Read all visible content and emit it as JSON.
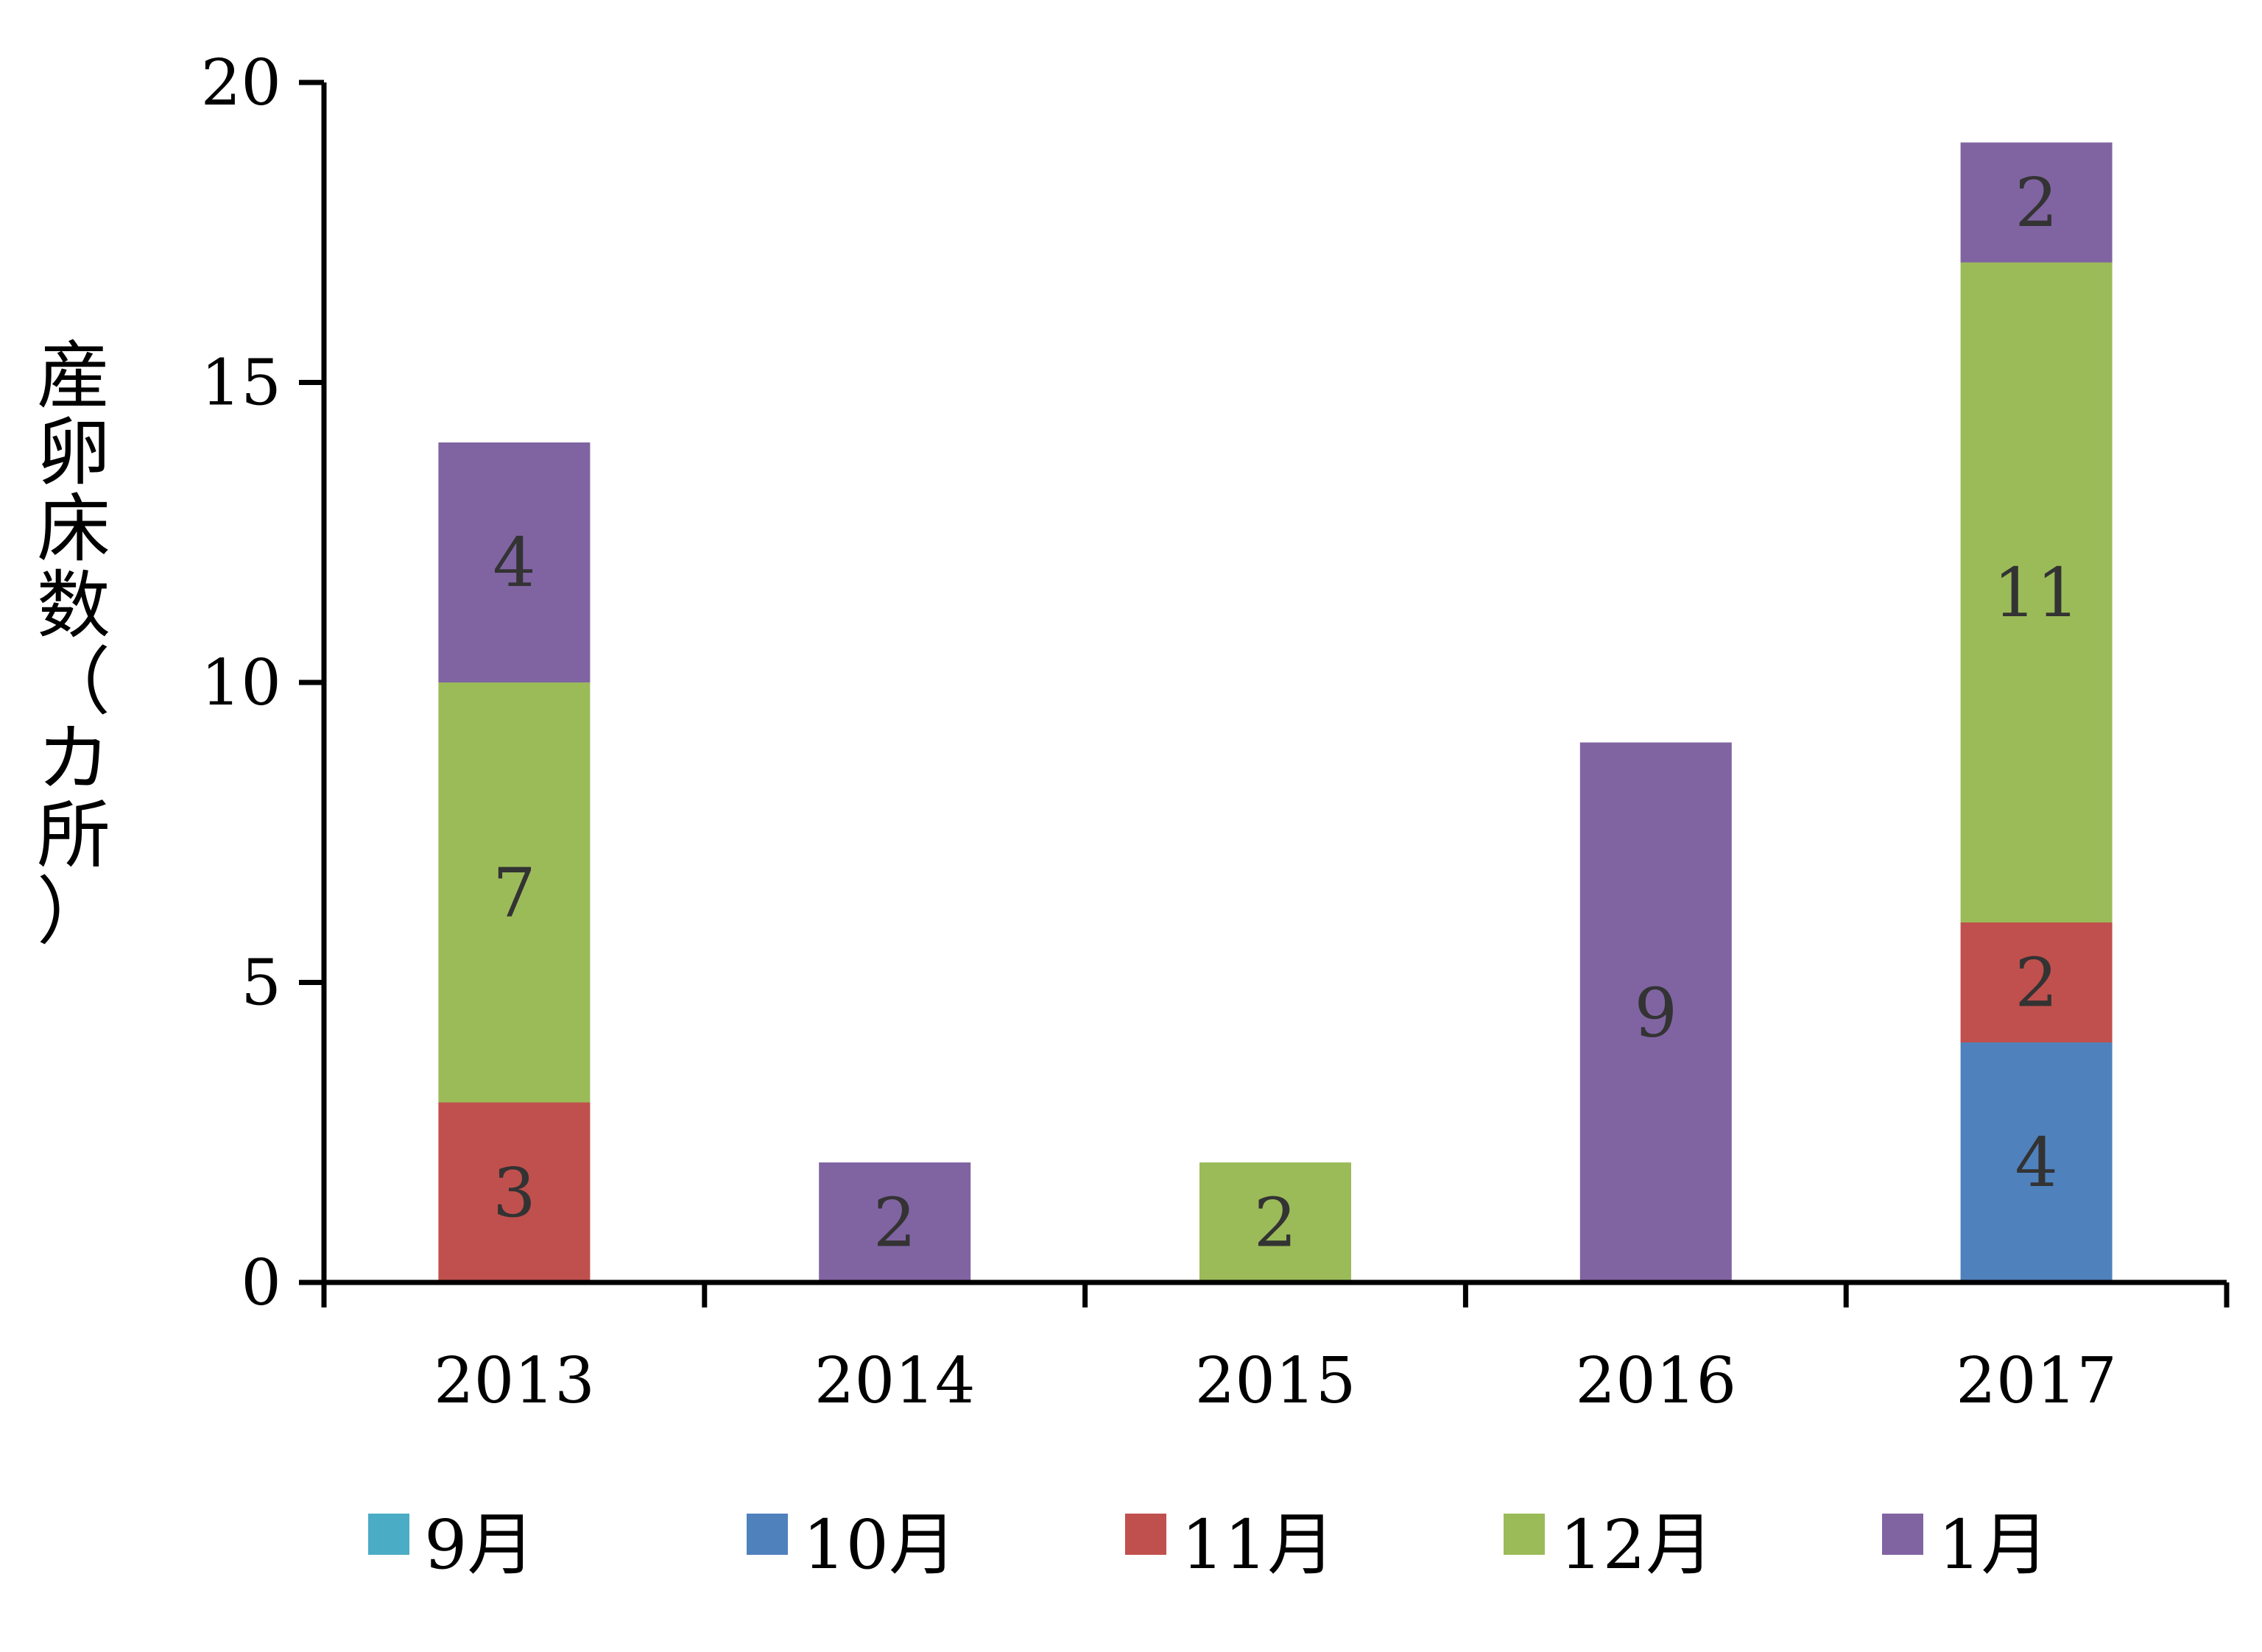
{
  "chart_data": {
    "type": "bar",
    "stacked": true,
    "title": "",
    "xlabel": "",
    "ylabel": "産卵床数（カ所）",
    "ylim": [
      0,
      20
    ],
    "yticks": [
      0,
      5,
      10,
      15,
      20
    ],
    "grid": false,
    "legend_position": "bottom",
    "categories": [
      "2013",
      "2014",
      "2015",
      "2016",
      "2017"
    ],
    "series": [
      {
        "name": "9月",
        "color": "#4bacc6",
        "values": [
          0,
          0,
          0,
          0,
          0
        ]
      },
      {
        "name": "10月",
        "color": "#4f81bd",
        "values": [
          0,
          0,
          0,
          0,
          4
        ]
      },
      {
        "name": "11月",
        "color": "#c0504d",
        "values": [
          3,
          0,
          0,
          0,
          2
        ]
      },
      {
        "name": "12月",
        "color": "#9bbb59",
        "values": [
          7,
          0,
          2,
          0,
          11
        ]
      },
      {
        "name": "1月",
        "color": "#8064a2",
        "values": [
          4,
          2,
          0,
          9,
          2
        ]
      }
    ]
  }
}
